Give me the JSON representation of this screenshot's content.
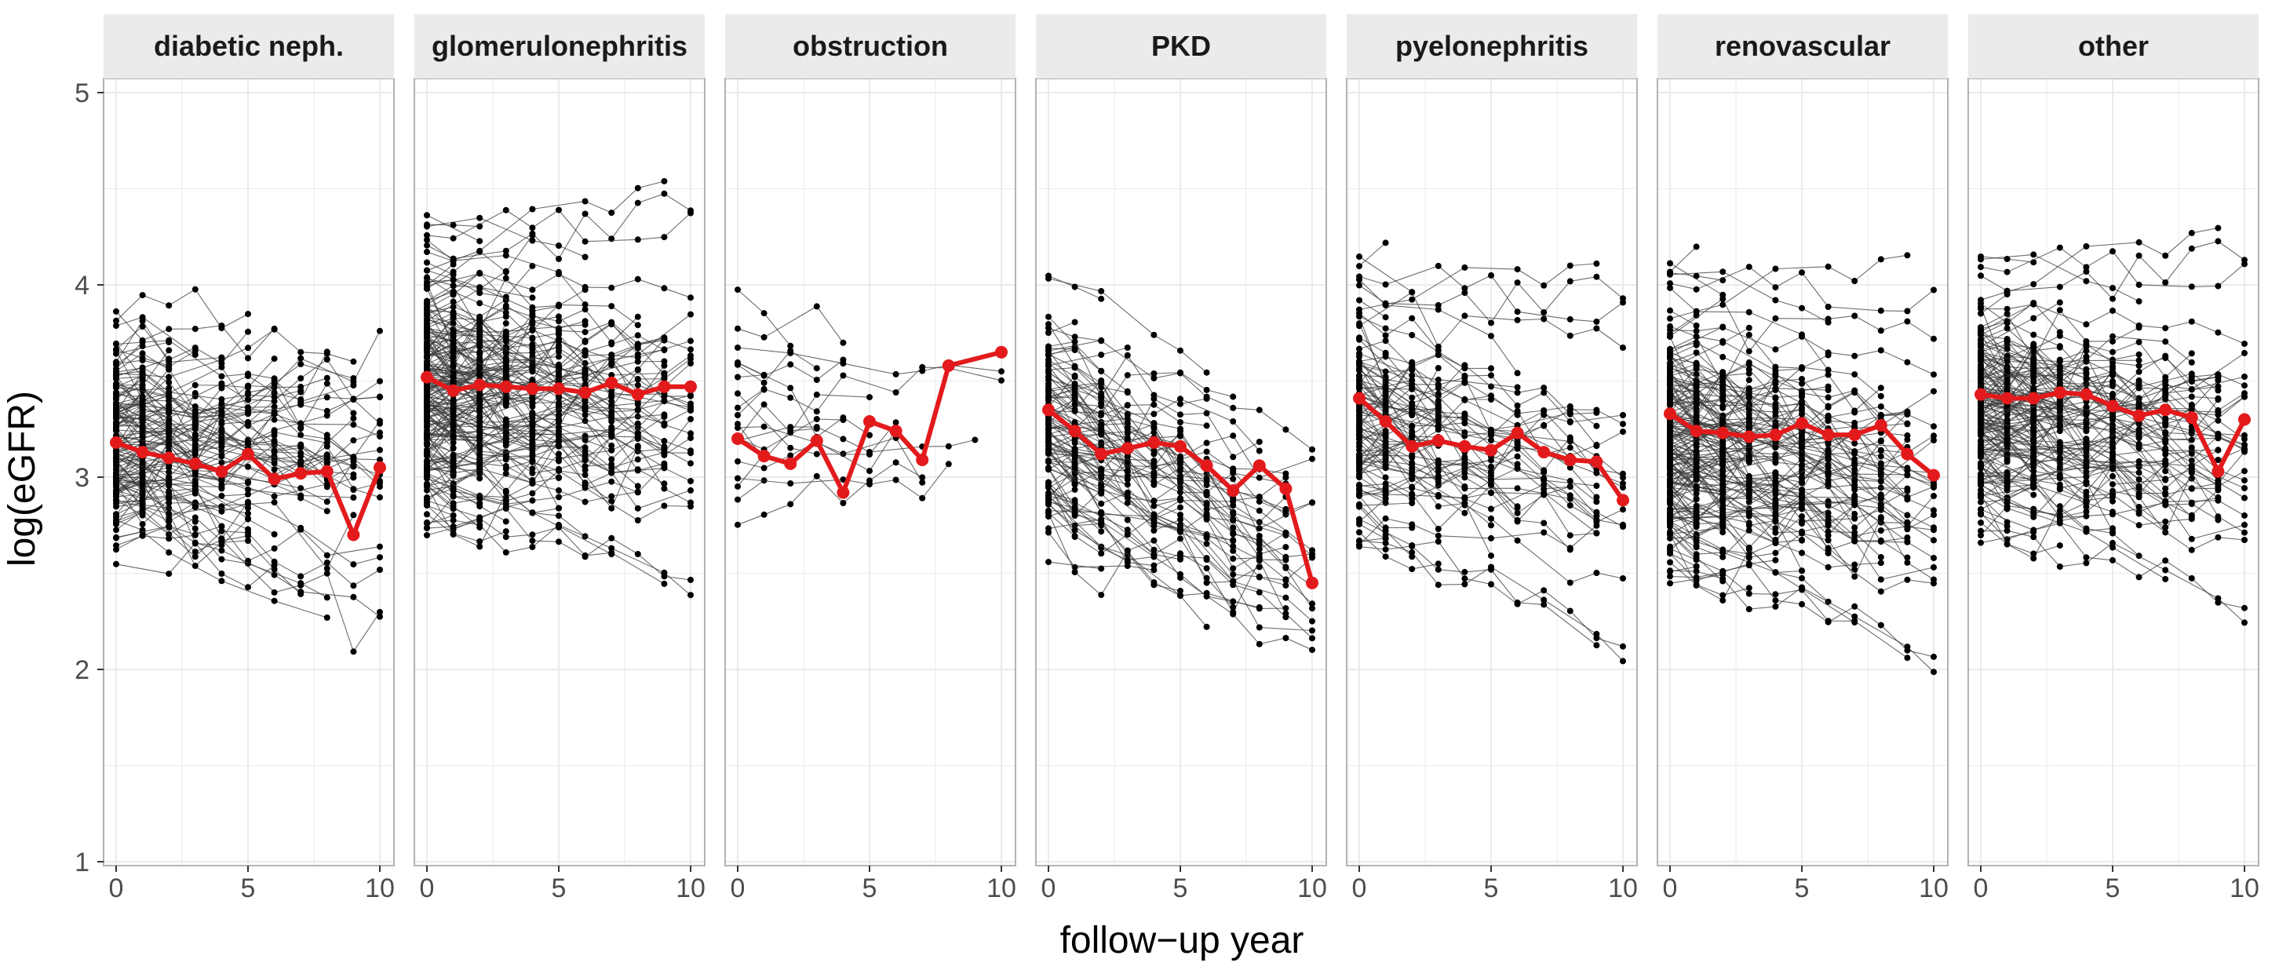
{
  "chart_data": {
    "type": "line",
    "xlabel": "follow−up year",
    "ylabel": "log(eGFR)",
    "xlim": [
      0,
      10
    ],
    "ylim": [
      1,
      5
    ],
    "x_ticks": [
      0,
      5,
      10
    ],
    "y_ticks": [
      1,
      2,
      3,
      4,
      5
    ],
    "grid": true,
    "legend": "none",
    "colors": {
      "mean_line": "#e31a1c",
      "individual": "#000000",
      "strip_bg": "#ebebeb",
      "panel_border": "#b3b3b3",
      "grid": "#ebebeb"
    },
    "facets": [
      {
        "title": "diabetic neph.",
        "mean": {
          "x": [
            0,
            1,
            2,
            3,
            4,
            5,
            6,
            7,
            8,
            9,
            10
          ],
          "y": [
            3.18,
            3.13,
            3.1,
            3.07,
            3.03,
            3.12,
            2.99,
            3.02,
            3.03,
            2.7,
            3.05
          ]
        },
        "individual": {
          "n": 150,
          "center": 3.2,
          "spread": 0.45,
          "slope": -0.01,
          "max_year": 10
        }
      },
      {
        "title": "glomerulonephritis",
        "mean": {
          "x": [
            0,
            1,
            2,
            3,
            4,
            5,
            6,
            7,
            8,
            9,
            10
          ],
          "y": [
            3.52,
            3.45,
            3.48,
            3.47,
            3.46,
            3.46,
            3.44,
            3.49,
            3.43,
            3.47,
            3.47
          ]
        },
        "individual": {
          "n": 220,
          "center": 3.5,
          "spread": 0.6,
          "slope": -0.005,
          "max_year": 10
        }
      },
      {
        "title": "obstruction",
        "mean": {
          "x": [
            0,
            1,
            2,
            3,
            4,
            5,
            6,
            7,
            8,
            10
          ],
          "y": [
            3.2,
            3.11,
            3.07,
            3.19,
            2.92,
            3.29,
            3.24,
            3.09,
            3.58,
            3.65
          ]
        },
        "individual": {
          "n": 20,
          "center": 3.2,
          "spread": 0.55,
          "slope": 0.0,
          "max_year": 9
        }
      },
      {
        "title": "PKD",
        "mean": {
          "x": [
            0,
            1,
            2,
            3,
            4,
            5,
            6,
            7,
            8,
            9,
            10
          ],
          "y": [
            3.35,
            3.24,
            3.12,
            3.15,
            3.18,
            3.16,
            3.06,
            2.93,
            3.06,
            2.94,
            2.45
          ]
        },
        "individual": {
          "n": 110,
          "center": 3.3,
          "spread": 0.55,
          "slope": -0.06,
          "max_year": 10
        }
      },
      {
        "title": "pyelonephritis",
        "mean": {
          "x": [
            0,
            1,
            2,
            3,
            4,
            5,
            6,
            7,
            8,
            9,
            10
          ],
          "y": [
            3.41,
            3.29,
            3.16,
            3.19,
            3.16,
            3.14,
            3.23,
            3.13,
            3.09,
            3.08,
            2.88
          ]
        },
        "individual": {
          "n": 110,
          "center": 3.35,
          "spread": 0.55,
          "slope": -0.03,
          "max_year": 10
        }
      },
      {
        "title": "renovascular",
        "mean": {
          "x": [
            0,
            1,
            2,
            3,
            4,
            5,
            6,
            7,
            8,
            9,
            10
          ],
          "y": [
            3.33,
            3.24,
            3.23,
            3.21,
            3.22,
            3.28,
            3.22,
            3.22,
            3.27,
            3.12,
            3.01
          ]
        },
        "individual": {
          "n": 200,
          "center": 3.25,
          "spread": 0.6,
          "slope": -0.02,
          "max_year": 10
        }
      },
      {
        "title": "other",
        "mean": {
          "x": [
            0,
            1,
            2,
            3,
            4,
            5,
            6,
            7,
            8,
            9,
            10
          ],
          "y": [
            3.43,
            3.41,
            3.41,
            3.44,
            3.43,
            3.37,
            3.32,
            3.35,
            3.31,
            3.03,
            3.3
          ]
        },
        "individual": {
          "n": 180,
          "center": 3.4,
          "spread": 0.55,
          "slope": -0.015,
          "max_year": 10
        }
      }
    ]
  }
}
